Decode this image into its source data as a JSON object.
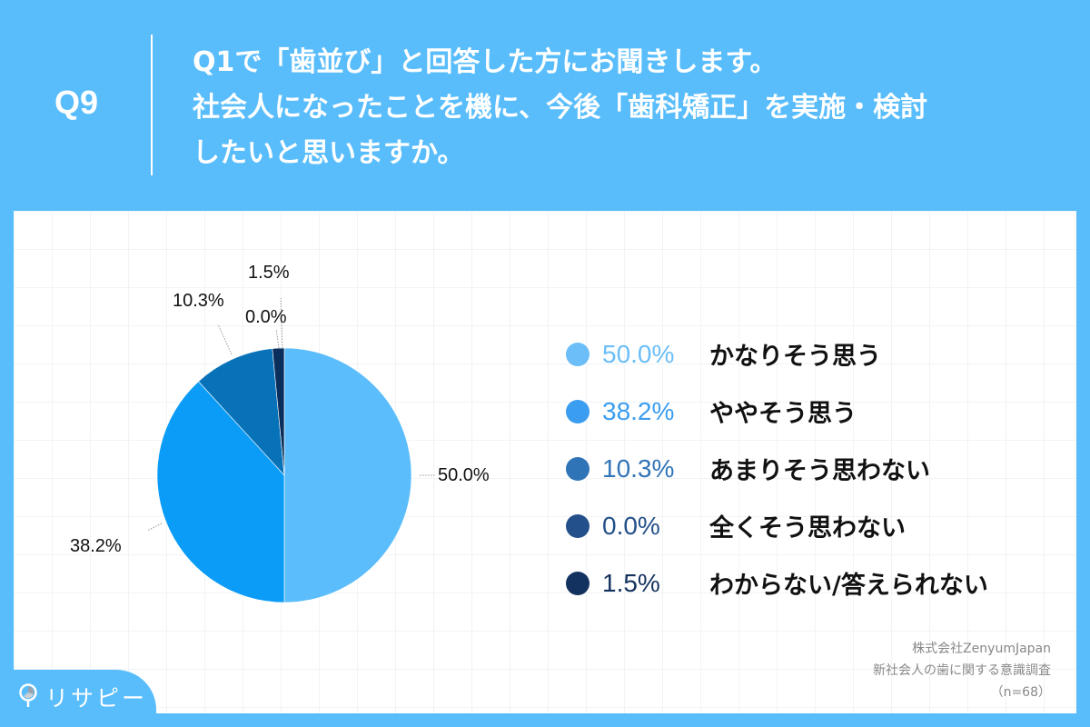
{
  "header": {
    "question_number": "Q9",
    "question_lines": [
      "Q1で「歯並び」と回答した方にお聞きします。",
      "社会人になったことを機に、今後「歯科矯正」を実施・検討",
      "したいと思いますか。"
    ]
  },
  "pie_labels": {
    "a": "50.0%",
    "b": "38.2%",
    "c": "10.3%",
    "d": "0.0%",
    "e": "1.5%"
  },
  "legend": [
    {
      "pct": "50.0%",
      "label": "かなりそう思う",
      "color": "#6BBEF8"
    },
    {
      "pct": "38.2%",
      "label": "ややそう思う",
      "color": "#3A9DF0"
    },
    {
      "pct": "10.3%",
      "label": "あまりそう思わない",
      "color": "#3074B8"
    },
    {
      "pct": "0.0%",
      "label": "全くそう思わない",
      "color": "#23508A"
    },
    {
      "pct": "1.5%",
      "label": "わからない/答えられない",
      "color": "#14325F"
    }
  ],
  "source": {
    "company": "株式会社ZenyumJapan",
    "survey": "新社会人の歯に関する意識調査",
    "sample": "（n=68）"
  },
  "logo": {
    "text": "リサピー"
  },
  "chart_data": {
    "type": "pie",
    "title": "Q9 Q1で「歯並び」と回答した方にお聞きします。社会人になったことを機に、今後「歯科矯正」を実施・検討したいと思いますか。",
    "categories": [
      "かなりそう思う",
      "ややそう思う",
      "あまりそう思わない",
      "全くそう思わない",
      "わからない/答えられない"
    ],
    "values": [
      50.0,
      38.2,
      10.3,
      0.0,
      1.5
    ],
    "colors": [
      "#5BBDFB",
      "#0A9CF7",
      "#0872B9",
      "#23508A",
      "#0B2F5C"
    ],
    "unit": "%",
    "n": 68,
    "legend_position": "right",
    "start_angle": "12 o'clock, clockwise"
  }
}
